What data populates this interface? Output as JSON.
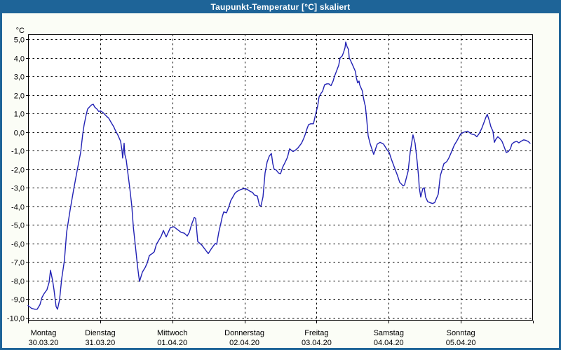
{
  "window": {
    "title": "Taupunkt-Temperatur [°C] skaliert"
  },
  "colors": {
    "titlebar_bg": "#1e6498",
    "title_text": "#ffffff",
    "window_border": "#1e6498",
    "page_bg": "#fbfdf6",
    "plot_bg": "#ffffff",
    "grid": "#000000",
    "line": "#2121b4"
  },
  "chart_data": {
    "type": "line",
    "title": "Taupunkt-Temperatur [°C] skaliert",
    "y_unit": "°C",
    "ylabel": "Taupunkt-Temperatur",
    "grid": "dashed",
    "legend": "none",
    "ylim": [
      -10.16,
      5.27
    ],
    "xlim_days": [
      0,
      7
    ],
    "y_ticks": [
      {
        "value": 5,
        "label": "5,0"
      },
      {
        "value": 4,
        "label": "4,0"
      },
      {
        "value": 3,
        "label": "3,0"
      },
      {
        "value": 2,
        "label": "2,0"
      },
      {
        "value": 1,
        "label": "1,0"
      },
      {
        "value": 0,
        "label": "0,0"
      },
      {
        "value": -1,
        "label": "-1,0"
      },
      {
        "value": -2,
        "label": "-2,0"
      },
      {
        "value": -3,
        "label": "-3,0"
      },
      {
        "value": -4,
        "label": "-4,0"
      },
      {
        "value": -5,
        "label": "-5,0"
      },
      {
        "value": -6,
        "label": "-6,0"
      },
      {
        "value": -7,
        "label": "-7,0"
      },
      {
        "value": -8,
        "label": "-8,0"
      },
      {
        "value": -9,
        "label": "-9,0"
      },
      {
        "value": -10,
        "label": "-10,0"
      }
    ],
    "x_days": [
      {
        "day_index": 0,
        "name": "Montag",
        "date": "30.03.20"
      },
      {
        "day_index": 1,
        "name": "Dienstag",
        "date": "31.03.20"
      },
      {
        "day_index": 2,
        "name": "Mittwoch",
        "date": "01.04.20"
      },
      {
        "day_index": 3,
        "name": "Donnerstag",
        "date": "02.04.20"
      },
      {
        "day_index": 4,
        "name": "Freitag",
        "date": "03.04.20"
      },
      {
        "day_index": 5,
        "name": "Samstag",
        "date": "04.04.20"
      },
      {
        "day_index": 6,
        "name": "Sonntag",
        "date": "05.04.20"
      }
    ],
    "series": [
      {
        "name": "Taupunkt-Temperatur [°C]",
        "color": "#2121b4",
        "points_day_value": [
          [
            0.0,
            -9.35
          ],
          [
            0.049,
            -9.5
          ],
          [
            0.097,
            -9.55
          ],
          [
            0.126,
            -9.55
          ],
          [
            0.165,
            -9.3
          ],
          [
            0.194,
            -8.9
          ],
          [
            0.224,
            -8.7
          ],
          [
            0.262,
            -8.5
          ],
          [
            0.292,
            -8.1
          ],
          [
            0.311,
            -7.45
          ],
          [
            0.34,
            -8.0
          ],
          [
            0.36,
            -8.5
          ],
          [
            0.389,
            -9.4
          ],
          [
            0.408,
            -9.55
          ],
          [
            0.437,
            -9.05
          ],
          [
            0.467,
            -7.9
          ],
          [
            0.505,
            -6.9
          ],
          [
            0.535,
            -5.4
          ],
          [
            0.583,
            -4.2
          ],
          [
            0.632,
            -3.1
          ],
          [
            0.68,
            -2.1
          ],
          [
            0.729,
            -1.1
          ],
          [
            0.758,
            -0.1
          ],
          [
            0.778,
            0.4
          ],
          [
            0.807,
            0.95
          ],
          [
            0.826,
            1.25
          ],
          [
            0.875,
            1.45
          ],
          [
            0.904,
            1.5
          ],
          [
            0.924,
            1.35
          ],
          [
            0.953,
            1.25
          ],
          [
            0.982,
            1.1
          ],
          [
            1.001,
            1.15
          ],
          [
            1.04,
            1.05
          ],
          [
            1.089,
            0.85
          ],
          [
            1.118,
            0.75
          ],
          [
            1.147,
            0.55
          ],
          [
            1.186,
            0.3
          ],
          [
            1.215,
            0.05
          ],
          [
            1.244,
            -0.15
          ],
          [
            1.283,
            -0.5
          ],
          [
            1.303,
            -1.0
          ],
          [
            1.312,
            -1.4
          ],
          [
            1.332,
            -0.6
          ],
          [
            1.342,
            -1.2
          ],
          [
            1.361,
            -1.5
          ],
          [
            1.381,
            -2.1
          ],
          [
            1.41,
            -3.0
          ],
          [
            1.439,
            -4.0
          ],
          [
            1.459,
            -5.1
          ],
          [
            1.488,
            -6.15
          ],
          [
            1.517,
            -7.2
          ],
          [
            1.536,
            -7.8
          ],
          [
            1.546,
            -8.05
          ],
          [
            1.585,
            -7.55
          ],
          [
            1.624,
            -7.3
          ],
          [
            1.653,
            -7.05
          ],
          [
            1.682,
            -6.65
          ],
          [
            1.721,
            -6.55
          ],
          [
            1.75,
            -6.45
          ],
          [
            1.779,
            -6.05
          ],
          [
            1.818,
            -5.8
          ],
          [
            1.847,
            -5.6
          ],
          [
            1.876,
            -5.3
          ],
          [
            1.915,
            -5.65
          ],
          [
            1.944,
            -5.4
          ],
          [
            1.974,
            -5.15
          ],
          [
            2.022,
            -5.1
          ],
          [
            2.071,
            -5.25
          ],
          [
            2.12,
            -5.4
          ],
          [
            2.168,
            -5.45
          ],
          [
            2.207,
            -5.6
          ],
          [
            2.236,
            -5.4
          ],
          [
            2.265,
            -5.0
          ],
          [
            2.304,
            -4.6
          ],
          [
            2.324,
            -4.65
          ],
          [
            2.353,
            -5.9
          ],
          [
            2.382,
            -6.0
          ],
          [
            2.411,
            -6.1
          ],
          [
            2.45,
            -6.3
          ],
          [
            2.479,
            -6.45
          ],
          [
            2.499,
            -6.55
          ],
          [
            2.547,
            -6.25
          ],
          [
            2.596,
            -6.0
          ],
          [
            2.615,
            -6.05
          ],
          [
            2.644,
            -5.4
          ],
          [
            2.674,
            -4.9
          ],
          [
            2.693,
            -4.55
          ],
          [
            2.713,
            -4.3
          ],
          [
            2.751,
            -4.35
          ],
          [
            2.79,
            -3.95
          ],
          [
            2.81,
            -3.7
          ],
          [
            2.839,
            -3.5
          ],
          [
            2.868,
            -3.3
          ],
          [
            2.897,
            -3.2
          ],
          [
            2.946,
            -3.1
          ],
          [
            2.985,
            -3.05
          ],
          [
            3.014,
            -3.05
          ],
          [
            3.043,
            -3.1
          ],
          [
            3.082,
            -3.2
          ],
          [
            3.111,
            -3.25
          ],
          [
            3.14,
            -3.4
          ],
          [
            3.179,
            -3.45
          ],
          [
            3.208,
            -3.95
          ],
          [
            3.228,
            -4.0
          ],
          [
            3.257,
            -3.5
          ],
          [
            3.286,
            -2.2
          ],
          [
            3.315,
            -1.6
          ],
          [
            3.344,
            -1.3
          ],
          [
            3.374,
            -1.15
          ],
          [
            3.393,
            -1.7
          ],
          [
            3.412,
            -2.0
          ],
          [
            3.442,
            -2.05
          ],
          [
            3.471,
            -2.2
          ],
          [
            3.5,
            -2.25
          ],
          [
            3.529,
            -1.9
          ],
          [
            3.568,
            -1.6
          ],
          [
            3.597,
            -1.35
          ],
          [
            3.626,
            -0.9
          ],
          [
            3.656,
            -1.0
          ],
          [
            3.675,
            -1.05
          ],
          [
            3.714,
            -0.95
          ],
          [
            3.743,
            -0.85
          ],
          [
            3.772,
            -0.7
          ],
          [
            3.792,
            -0.6
          ],
          [
            3.821,
            -0.35
          ],
          [
            3.84,
            -0.15
          ],
          [
            3.869,
            0.2
          ],
          [
            3.889,
            0.4
          ],
          [
            3.918,
            0.45
          ],
          [
            3.957,
            0.45
          ],
          [
            3.986,
            0.95
          ],
          [
            4.015,
            1.4
          ],
          [
            4.035,
            1.9
          ],
          [
            4.064,
            2.1
          ],
          [
            4.083,
            2.2
          ],
          [
            4.112,
            2.55
          ],
          [
            4.142,
            2.6
          ],
          [
            4.171,
            2.6
          ],
          [
            4.2,
            2.5
          ],
          [
            4.229,
            2.75
          ],
          [
            4.248,
            3.0
          ],
          [
            4.278,
            3.3
          ],
          [
            4.307,
            3.6
          ],
          [
            4.326,
            4.0
          ],
          [
            4.355,
            4.1
          ],
          [
            4.375,
            4.3
          ],
          [
            4.394,
            4.55
          ],
          [
            4.404,
            4.85
          ],
          [
            4.424,
            4.6
          ],
          [
            4.443,
            4.45
          ],
          [
            4.453,
            4.0
          ],
          [
            4.472,
            3.85
          ],
          [
            4.501,
            3.6
          ],
          [
            4.54,
            3.25
          ],
          [
            4.55,
            2.95
          ],
          [
            4.569,
            2.65
          ],
          [
            4.589,
            2.75
          ],
          [
            4.598,
            2.55
          ],
          [
            4.637,
            2.2
          ],
          [
            4.647,
            1.9
          ],
          [
            4.666,
            1.55
          ],
          [
            4.676,
            1.4
          ],
          [
            4.695,
            0.7
          ],
          [
            4.715,
            -0.2
          ],
          [
            4.744,
            -0.65
          ],
          [
            4.783,
            -1.1
          ],
          [
            4.792,
            -1.2
          ],
          [
            4.841,
            -0.65
          ],
          [
            4.88,
            -0.55
          ],
          [
            4.929,
            -0.65
          ],
          [
            4.977,
            -0.95
          ],
          [
            5.007,
            -1.1
          ],
          [
            5.036,
            -1.45
          ],
          [
            5.084,
            -1.95
          ],
          [
            5.123,
            -2.35
          ],
          [
            5.152,
            -2.7
          ],
          [
            5.201,
            -2.9
          ],
          [
            5.22,
            -2.85
          ],
          [
            5.269,
            -2.1
          ],
          [
            5.298,
            -1.1
          ],
          [
            5.337,
            -0.15
          ],
          [
            5.366,
            -0.6
          ],
          [
            5.395,
            -1.6
          ],
          [
            5.415,
            -2.45
          ],
          [
            5.424,
            -3.0
          ],
          [
            5.444,
            -3.5
          ],
          [
            5.473,
            -3.05
          ],
          [
            5.493,
            -3.0
          ],
          [
            5.512,
            -3.5
          ],
          [
            5.541,
            -3.75
          ],
          [
            5.57,
            -3.8
          ],
          [
            5.609,
            -3.85
          ],
          [
            5.638,
            -3.8
          ],
          [
            5.687,
            -3.35
          ],
          [
            5.716,
            -2.35
          ],
          [
            5.735,
            -2.1
          ],
          [
            5.765,
            -1.7
          ],
          [
            5.803,
            -1.6
          ],
          [
            5.833,
            -1.4
          ],
          [
            5.862,
            -1.15
          ],
          [
            5.91,
            -0.7
          ],
          [
            5.949,
            -0.45
          ],
          [
            5.998,
            -0.1
          ],
          [
            6.046,
            0.0
          ],
          [
            6.095,
            0.05
          ],
          [
            6.144,
            -0.1
          ],
          [
            6.192,
            -0.15
          ],
          [
            6.222,
            -0.25
          ],
          [
            6.251,
            -0.1
          ],
          [
            6.29,
            0.2
          ],
          [
            6.319,
            0.5
          ],
          [
            6.348,
            0.8
          ],
          [
            6.367,
            0.95
          ],
          [
            6.396,
            0.6
          ],
          [
            6.416,
            0.3
          ],
          [
            6.445,
            0.05
          ],
          [
            6.465,
            -0.55
          ],
          [
            6.484,
            -0.4
          ],
          [
            6.513,
            -0.25
          ],
          [
            6.542,
            -0.35
          ],
          [
            6.571,
            -0.5
          ],
          [
            6.601,
            -0.8
          ],
          [
            6.63,
            -1.1
          ],
          [
            6.659,
            -1.05
          ],
          [
            6.688,
            -0.9
          ],
          [
            6.707,
            -0.65
          ],
          [
            6.737,
            -0.55
          ],
          [
            6.775,
            -0.5
          ],
          [
            6.805,
            -0.58
          ],
          [
            6.834,
            -0.5
          ],
          [
            6.873,
            -0.42
          ],
          [
            6.902,
            -0.45
          ],
          [
            6.931,
            -0.5
          ],
          [
            6.96,
            -0.6
          ]
        ]
      }
    ]
  }
}
